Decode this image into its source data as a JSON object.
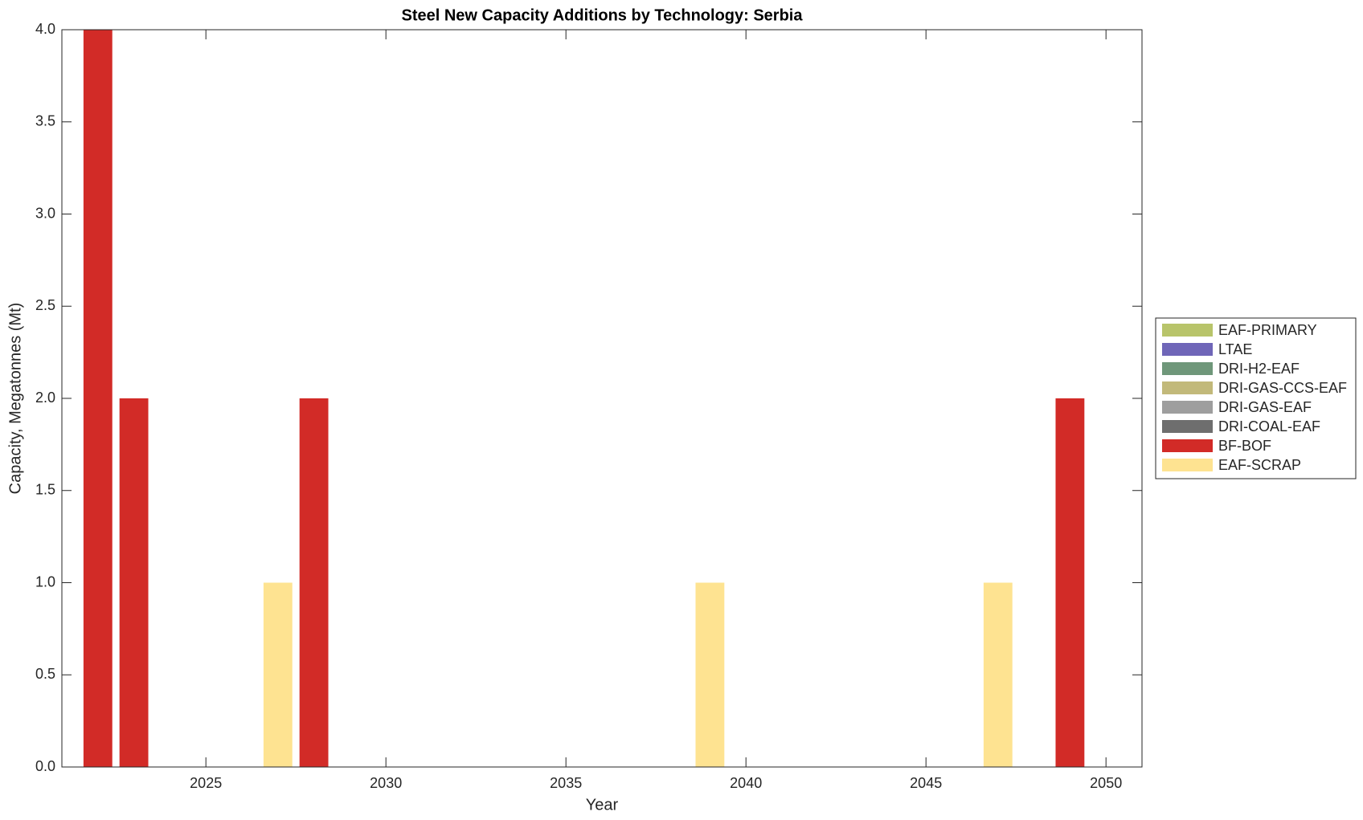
{
  "chart_data": {
    "type": "stacked-bar",
    "title": "Steel New Capacity Additions by Technology: Serbia",
    "x_label": "Year",
    "y_label": "Capacity, Megatonnes (Mt)",
    "x": [
      2022,
      2023,
      2024,
      2025,
      2026,
      2027,
      2028,
      2029,
      2030,
      2031,
      2032,
      2033,
      2034,
      2035,
      2036,
      2037,
      2038,
      2039,
      2040,
      2041,
      2042,
      2043,
      2044,
      2045,
      2046,
      2047,
      2048,
      2049,
      2050
    ],
    "series": [
      {
        "name": "EAF-SCRAP",
        "color": "#fee391",
        "values": [
          0,
          0,
          0,
          0,
          0,
          1,
          0,
          0,
          0,
          0,
          0,
          0,
          0,
          0,
          0,
          0,
          0,
          1,
          0,
          0,
          0,
          0,
          0,
          0,
          0,
          1,
          0,
          0,
          0
        ]
      },
      {
        "name": "BF-BOF",
        "color": "#d22b27",
        "values": [
          4,
          2,
          0,
          0,
          0,
          0,
          2,
          0,
          0,
          0,
          0,
          0,
          0,
          0,
          0,
          0,
          0,
          0,
          0,
          0,
          0,
          0,
          0,
          0,
          0,
          0,
          0,
          2,
          0
        ]
      },
      {
        "name": "DRI-COAL-EAF",
        "color": "#6e6e6e",
        "values": [
          0,
          0,
          0,
          0,
          0,
          0,
          0,
          0,
          0,
          0,
          0,
          0,
          0,
          0,
          0,
          0,
          0,
          0,
          0,
          0,
          0,
          0,
          0,
          0,
          0,
          0,
          0,
          0,
          0
        ]
      },
      {
        "name": "DRI-GAS-EAF",
        "color": "#9e9e9e",
        "values": [
          0,
          0,
          0,
          0,
          0,
          0,
          0,
          0,
          0,
          0,
          0,
          0,
          0,
          0,
          0,
          0,
          0,
          0,
          0,
          0,
          0,
          0,
          0,
          0,
          0,
          0,
          0,
          0,
          0
        ]
      },
      {
        "name": "DRI-GAS-CCS-EAF",
        "color": "#c2b97a",
        "values": [
          0,
          0,
          0,
          0,
          0,
          0,
          0,
          0,
          0,
          0,
          0,
          0,
          0,
          0,
          0,
          0,
          0,
          0,
          0,
          0,
          0,
          0,
          0,
          0,
          0,
          0,
          0,
          0,
          0
        ]
      },
      {
        "name": "DRI-H2-EAF",
        "color": "#6f977a",
        "values": [
          0,
          0,
          0,
          0,
          0,
          0,
          0,
          0,
          0,
          0,
          0,
          0,
          0,
          0,
          0,
          0,
          0,
          0,
          0,
          0,
          0,
          0,
          0,
          0,
          0,
          0,
          0,
          0,
          0
        ]
      },
      {
        "name": "LTAE",
        "color": "#6f66b8",
        "values": [
          0,
          0,
          0,
          0,
          0,
          0,
          0,
          0,
          0,
          0,
          0,
          0,
          0,
          0,
          0,
          0,
          0,
          0,
          0,
          0,
          0,
          0,
          0,
          0,
          0,
          0,
          0,
          0,
          0
        ]
      },
      {
        "name": "EAF-PRIMARY",
        "color": "#b8c46a",
        "values": [
          0,
          0,
          0,
          0,
          0,
          0,
          0,
          0,
          0,
          0,
          0,
          0,
          0,
          0,
          0,
          0,
          0,
          0,
          0,
          0,
          0,
          0,
          0,
          0,
          0,
          0,
          0,
          0,
          0
        ]
      }
    ],
    "xlim": [
      2021,
      2051
    ],
    "xticks": [
      2025,
      2030,
      2035,
      2040,
      2045,
      2050
    ],
    "ylim": [
      0,
      4
    ],
    "yticks": [
      {
        "value": 0,
        "label": "0.0"
      },
      {
        "value": 0.5,
        "label": "0.5"
      },
      {
        "value": 1,
        "label": "1.0"
      },
      {
        "value": 1.5,
        "label": "1.5"
      },
      {
        "value": 2,
        "label": "2.0"
      },
      {
        "value": 2.5,
        "label": "2.5"
      },
      {
        "value": 3,
        "label": "3.0"
      },
      {
        "value": 3.5,
        "label": "3.5"
      },
      {
        "value": 4,
        "label": "4.0"
      }
    ],
    "grid": false,
    "legend_position": "right"
  }
}
